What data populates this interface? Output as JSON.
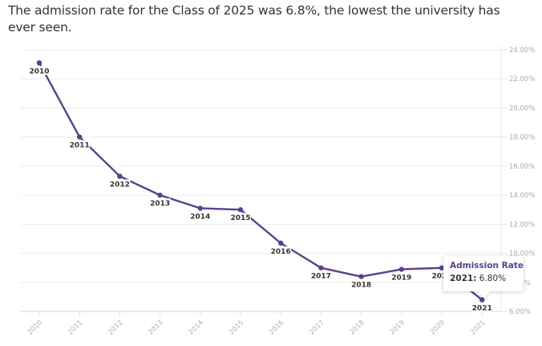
{
  "subtitle": "The admission rate for the Class of 2025 was 6.8%, the lowest the university has ever seen.",
  "chart_data": {
    "type": "line",
    "title": "",
    "xlabel": "",
    "ylabel": "",
    "series": [
      {
        "name": "Admission Rate",
        "color": "#5c3f8c",
        "x": [
          "2010",
          "2011",
          "2012",
          "2013",
          "2014",
          "2015",
          "2016",
          "2017",
          "2018",
          "2019",
          "2020",
          "2021"
        ],
        "values": [
          23.1,
          18.0,
          15.3,
          14.0,
          13.1,
          13.0,
          10.7,
          9.0,
          8.4,
          8.9,
          9.0,
          6.8
        ]
      }
    ],
    "categories": [
      "2010",
      "2011",
      "2012",
      "2013",
      "2014",
      "2015",
      "2016",
      "2017",
      "2018",
      "2019",
      "2020",
      "2021"
    ],
    "point_labels": [
      "2010",
      "2011",
      "2012",
      "2013",
      "2014",
      "2015",
      "2016",
      "2017",
      "2018",
      "2019",
      "2020",
      "2021"
    ],
    "ylim": [
      6,
      24
    ],
    "y_ticks": [
      6,
      8,
      10,
      12,
      14,
      16,
      18,
      20,
      22,
      24
    ],
    "y_tick_labels": [
      "6.00%",
      "8.00%",
      "10.00%",
      "12.00%",
      "14.00%",
      "16.00%",
      "18.00%",
      "20.00%",
      "22.00%",
      "24.00%"
    ],
    "y_axis_side": "right",
    "grid": true,
    "legend": "none"
  },
  "tooltip": {
    "series_name": "Admission Rate",
    "year_label": "2021:",
    "value_label": "6.80%"
  }
}
